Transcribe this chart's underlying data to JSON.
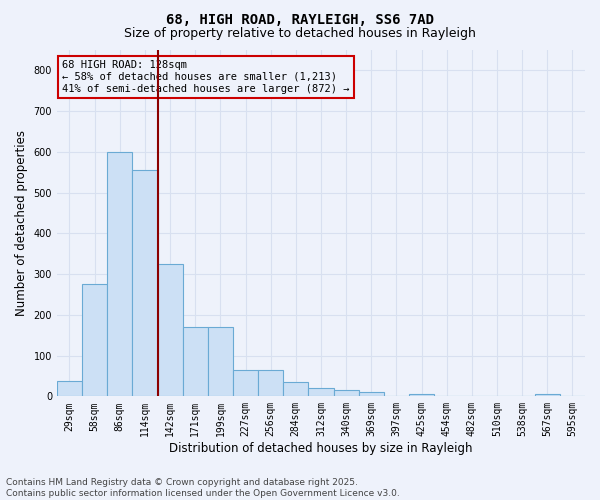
{
  "title": "68, HIGH ROAD, RAYLEIGH, SS6 7AD",
  "subtitle": "Size of property relative to detached houses in Rayleigh",
  "xlabel": "Distribution of detached houses by size in Rayleigh",
  "ylabel": "Number of detached properties",
  "footer_line1": "Contains HM Land Registry data © Crown copyright and database right 2025.",
  "footer_line2": "Contains public sector information licensed under the Open Government Licence v3.0.",
  "bar_color": "#cce0f5",
  "bar_edgecolor": "#6aaad4",
  "vline_color": "#8b0000",
  "annotation_box_color": "#cc0000",
  "annotation_text": "68 HIGH ROAD: 128sqm\n← 58% of detached houses are smaller (1,213)\n41% of semi-detached houses are larger (872) →",
  "vline_x_index": 3.5,
  "categories": [
    "29sqm",
    "58sqm",
    "86sqm",
    "114sqm",
    "142sqm",
    "171sqm",
    "199sqm",
    "227sqm",
    "256sqm",
    "284sqm",
    "312sqm",
    "340sqm",
    "369sqm",
    "397sqm",
    "425sqm",
    "454sqm",
    "482sqm",
    "510sqm",
    "538sqm",
    "567sqm",
    "595sqm"
  ],
  "values": [
    38,
    275,
    600,
    555,
    325,
    170,
    170,
    65,
    65,
    35,
    20,
    15,
    10,
    0,
    5,
    0,
    0,
    0,
    0,
    5,
    0
  ],
  "ylim": [
    0,
    850
  ],
  "yticks": [
    0,
    100,
    200,
    300,
    400,
    500,
    600,
    700,
    800
  ],
  "background_color": "#eef2fb",
  "grid_color": "#d8e0f0",
  "title_fontsize": 10,
  "subtitle_fontsize": 9,
  "tick_fontsize": 7,
  "label_fontsize": 8.5,
  "footer_fontsize": 6.5,
  "annot_fontsize": 7.5
}
